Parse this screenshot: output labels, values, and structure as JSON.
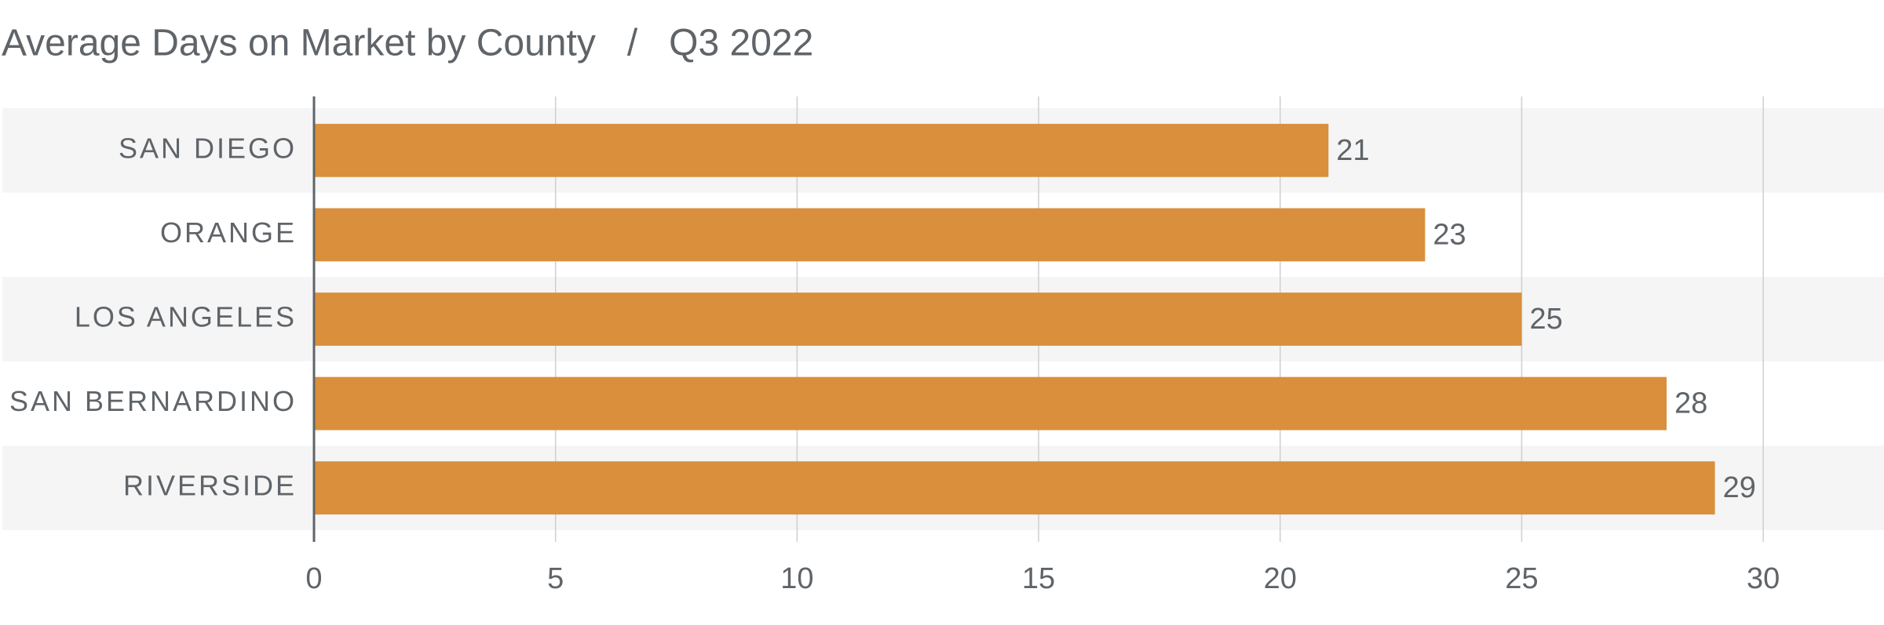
{
  "chart_data": {
    "type": "bar",
    "orientation": "horizontal",
    "title": "Average Days on Market by County   /   Q3 2022",
    "categories": [
      "SAN DIEGO",
      "ORANGE",
      "LOS ANGELES",
      "SAN BERNARDINO",
      "RIVERSIDE"
    ],
    "values": [
      21,
      23,
      25,
      28,
      29
    ],
    "color": "#d98f3c",
    "xlim": [
      0,
      32.5
    ],
    "xticks": [
      0,
      5,
      10,
      15,
      20,
      25,
      30
    ],
    "grid": true
  }
}
